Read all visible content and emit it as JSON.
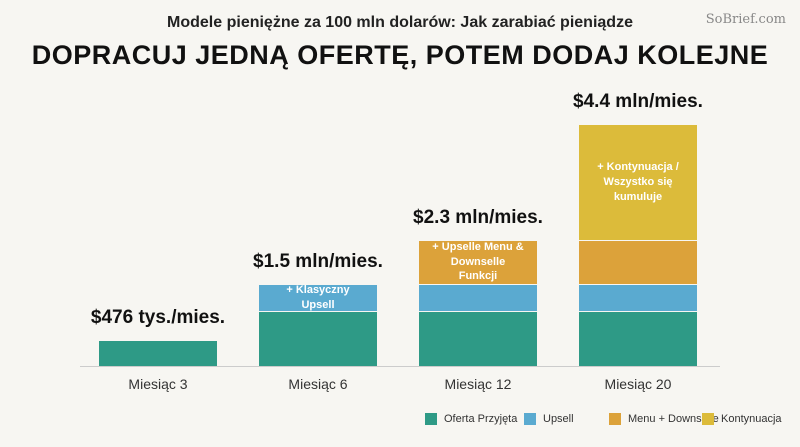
{
  "watermark": "SoBrief.com",
  "chart_data": {
    "type": "stacked-bar",
    "title": "Modele pieniężne za 100 mln dolarów: Jak zarabiać pieniądze",
    "subtitle": "DOPRACUJ JEDNĄ OFERTĘ, POTEM DODAJ KOLEJNE",
    "categories": [
      "Miesiąc 3",
      "Miesiąc 6",
      "Miesiąc 12",
      "Miesiąc 20"
    ],
    "total_labels": [
      "$476 tys./mies.",
      "$1.5 mln/mies.",
      "$2.3 mln/mies.",
      "$4.4 mln/mies."
    ],
    "series": [
      {
        "name": "Oferta Przyjęta",
        "color": "#2e9a86",
        "values": [
          0.476,
          1.0,
          1.0,
          1.0
        ],
        "segment_labels": [
          null,
          null,
          null,
          null
        ]
      },
      {
        "name": "Upsell",
        "color": "#5aaad0",
        "values": [
          null,
          0.5,
          0.5,
          0.5
        ],
        "segment_labels": [
          null,
          "+ Klasyczny Upsell",
          null,
          null
        ]
      },
      {
        "name": "Menu + Downselle",
        "color": "#dca23a",
        "values": [
          null,
          null,
          0.8,
          0.8
        ],
        "segment_labels": [
          null,
          null,
          "+ Upselle Menu & Downselle Funkcji",
          null
        ]
      },
      {
        "name": "Kontynuacja",
        "color": "#dcbb3a",
        "values": [
          null,
          null,
          null,
          2.1
        ],
        "segment_labels": [
          null,
          null,
          null,
          "+ Kontynuacja / Wszystko się kumuluje"
        ]
      }
    ],
    "legend": "bottom-right"
  }
}
